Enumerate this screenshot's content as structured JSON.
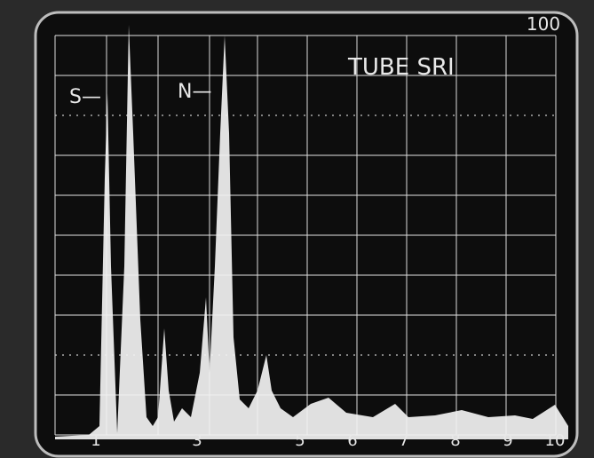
{
  "screen": {
    "caption": "TUBE SRI",
    "corner_label": "100",
    "markers": [
      "S—",
      "N—"
    ],
    "scale_labels": [
      "1",
      "3",
      "5",
      "6",
      "7",
      "8",
      "9",
      "10"
    ]
  }
}
